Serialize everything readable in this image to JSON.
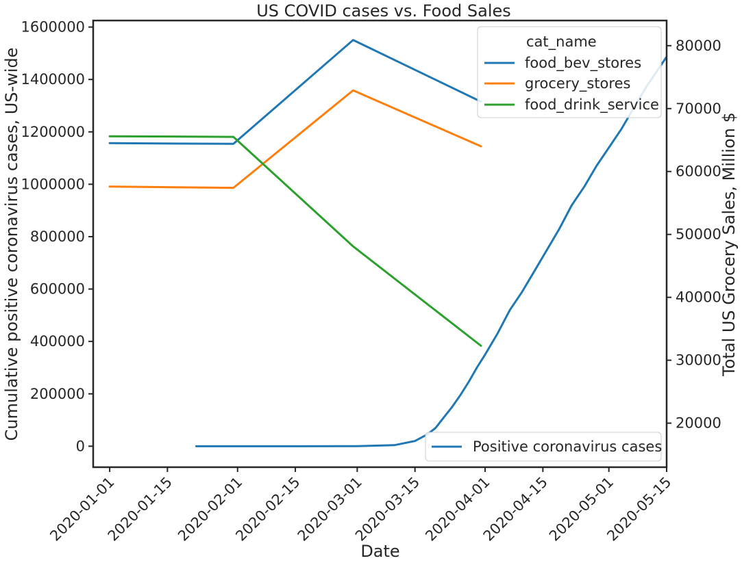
{
  "chart_data": {
    "type": "line",
    "title": "US COVID cases vs. Food Sales",
    "xlabel": "Date",
    "ylabel_left": "Cumulative positive coronavirus cases, US-wide",
    "ylabel_right": "Total US Grocery Sales, Million $",
    "x_ticks": [
      "2020-01-01",
      "2020-01-15",
      "2020-02-01",
      "2020-02-15",
      "2020-03-01",
      "2020-03-15",
      "2020-04-01",
      "2020-04-15",
      "2020-05-01",
      "2020-05-15"
    ],
    "y_left_ticks": [
      "0",
      "200000",
      "400000",
      "600000",
      "800000",
      "1000000",
      "1200000",
      "1400000",
      "1600000"
    ],
    "y_right_ticks": [
      "20000",
      "30000",
      "40000",
      "50000",
      "60000",
      "70000",
      "80000"
    ],
    "y_left_range": [
      -80000,
      1625000
    ],
    "y_right_range": [
      13000,
      84000
    ],
    "legend_sales": {
      "title": "cat_name",
      "placement": "upper right",
      "entries": [
        "food_bev_stores",
        "grocery_stores",
        "food_drink_service"
      ]
    },
    "legend_cases": {
      "placement": "lower right",
      "entries": [
        "Positive coronavirus cases"
      ]
    },
    "sales_series": [
      {
        "name": "food_bev_stores",
        "color": "#1f77b4",
        "x": [
          "2020-01-01",
          "2020-01-31",
          "2020-02-29",
          "2020-03-31"
        ],
        "values": [
          64500,
          64400,
          80900,
          71100
        ]
      },
      {
        "name": "grocery_stores",
        "color": "#ff7f0e",
        "x": [
          "2020-01-01",
          "2020-01-31",
          "2020-02-29",
          "2020-03-31"
        ],
        "values": [
          57600,
          57400,
          72900,
          64000
        ]
      },
      {
        "name": "food_drink_service",
        "color": "#2ca02c",
        "x": [
          "2020-01-01",
          "2020-01-31",
          "2020-02-29",
          "2020-03-31"
        ],
        "values": [
          65600,
          65500,
          48100,
          32300
        ]
      }
    ],
    "cases_series": {
      "name": "Positive coronavirus cases",
      "color": "#1f77b4",
      "x": [
        "2020-01-22",
        "2020-02-15",
        "2020-03-01",
        "2020-03-10",
        "2020-03-15",
        "2020-03-18",
        "2020-03-20",
        "2020-03-22",
        "2020-03-24",
        "2020-03-26",
        "2020-03-28",
        "2020-03-30",
        "2020-04-01",
        "2020-04-04",
        "2020-04-07",
        "2020-04-10",
        "2020-04-13",
        "2020-04-16",
        "2020-04-19",
        "2020-04-22",
        "2020-04-25",
        "2020-04-28",
        "2020-05-01",
        "2020-05-04",
        "2020-05-07",
        "2020-05-10",
        "2020-05-13",
        "2020-05-16"
      ],
      "values": [
        0,
        0,
        500,
        4000,
        20000,
        45000,
        70000,
        110000,
        150000,
        195000,
        245000,
        300000,
        350000,
        430000,
        520000,
        590000,
        670000,
        750000,
        830000,
        920000,
        990000,
        1070000,
        1140000,
        1210000,
        1290000,
        1370000,
        1440000,
        1510000
      ]
    }
  }
}
